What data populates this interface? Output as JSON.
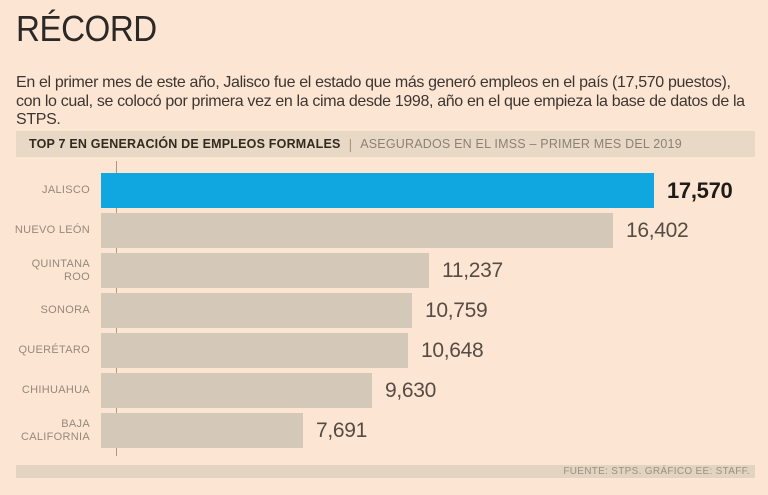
{
  "page": {
    "title": "RÉCORD",
    "intro": "En el primer mes de este año, Jalisco fue el estado que más generó empleos en el país (17,570 puestos), con lo cual, se colocó por primera vez en la cima desde 1998, año en el que empieza la base de datos de la STPS."
  },
  "chart_header": {
    "title": "TOP 7 EN GENERACIÓN DE EMPLEOS FORMALES",
    "divider": "|",
    "subtitle": "ASEGURADOS EN EL IMSS – PRIMER MES DEL 2019"
  },
  "footer": {
    "source": "FUENTE: STPS. GRÁFICO EE: STAFF."
  },
  "colors": {
    "background": "#fde5d3",
    "highlight_bar": "#10a7e1",
    "bar": "#d4c8b8",
    "band": "#e7d9c6",
    "title_text": "#2c2826",
    "label_text": "#96887a",
    "value_text": "#564c44",
    "highlight_value_text": "#1f1b19"
  },
  "chart_data": {
    "type": "bar",
    "orientation": "horizontal",
    "title": "TOP 7 EN GENERACIÓN DE EMPLEOS FORMALES",
    "subtitle": "ASEGURADOS EN EL IMSS – PRIMER MES DEL 2019",
    "categories": [
      "JALISCO",
      "NUEVO LEÓN",
      "QUINTANA ROO",
      "SONORA",
      "QUERÉTARO",
      "CHIHUAHUA",
      "BAJA CALIFORNIA"
    ],
    "label_lines": [
      [
        "JALISCO"
      ],
      [
        "NUEVO LEÓN"
      ],
      [
        "QUINTANA",
        "ROO"
      ],
      [
        "SONORA"
      ],
      [
        "QUERÉTARO"
      ],
      [
        "CHIHUAHUA"
      ],
      [
        "BAJA",
        "CALIFORNIA"
      ]
    ],
    "values": [
      17570,
      16402,
      11237,
      10759,
      10648,
      9630,
      7691
    ],
    "value_labels": [
      "17,570",
      "16,402",
      "11,237",
      "10,759",
      "10,648",
      "9,630",
      "7,691"
    ],
    "highlight_index": 0,
    "x_axis_min": 2000,
    "x_axis_max": 17570,
    "grid": false,
    "legend": false
  }
}
